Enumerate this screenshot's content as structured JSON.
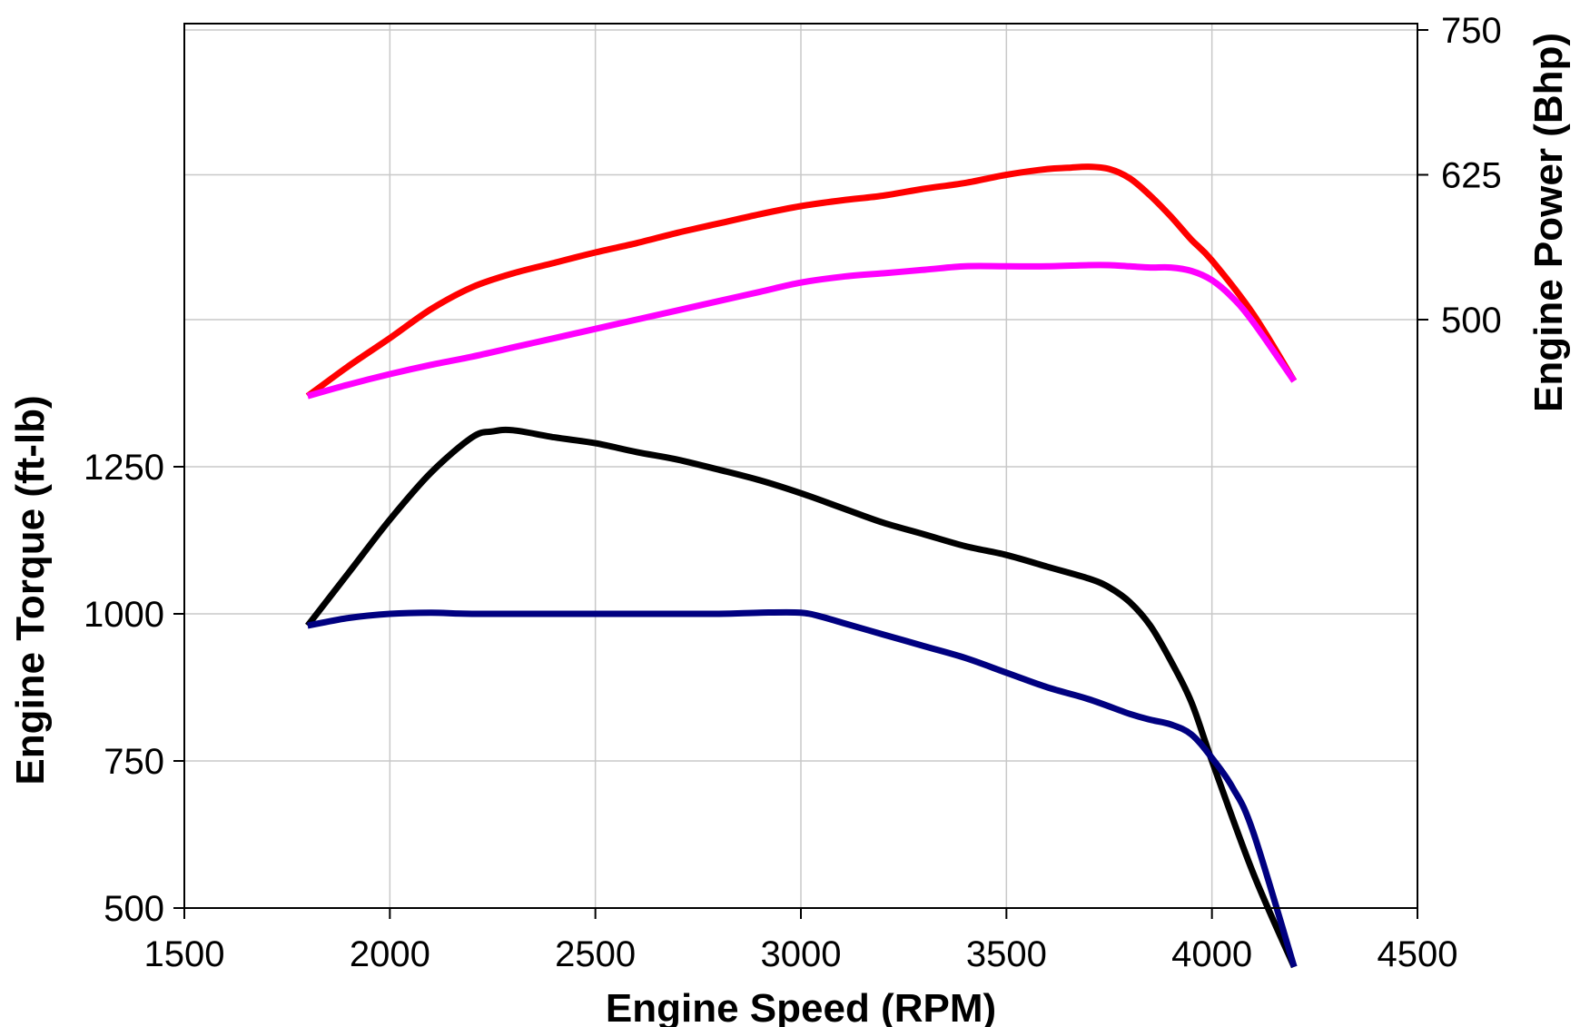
{
  "chart_data": {
    "type": "line",
    "xlabel": "Engine Speed (RPM)",
    "ylabel_left": "Engine Torque (ft-lb)",
    "ylabel_right": "Engine Power (Bhp)",
    "xlim": [
      1500,
      4500
    ],
    "x_ticks": [
      "1500",
      "2000",
      "2500",
      "3000",
      "3500",
      "4000",
      "4500"
    ],
    "y_left_ticks": [
      "500",
      "750",
      "1000",
      "1250"
    ],
    "y_right_ticks": [
      "500",
      "625",
      "750"
    ],
    "ylim_left": [
      500,
      1250
    ],
    "ylim_right": [
      500,
      750
    ],
    "grid": true,
    "series": [
      {
        "axis": "right",
        "color": "#ff0000",
        "x": [
          1800,
          1900,
          2000,
          2100,
          2200,
          2300,
          2400,
          2500,
          2600,
          2700,
          2800,
          2900,
          3000,
          3100,
          3200,
          3300,
          3400,
          3500,
          3600,
          3650,
          3700,
          3750,
          3800,
          3850,
          3900,
          3950,
          4000,
          4100,
          4200
        ],
        "values": [
          434,
          460,
          484,
          509,
          528,
          540,
          549,
          558,
          566,
          575,
          583,
          591,
          598,
          603,
          607,
          613,
          618,
          625,
          630,
          631,
          632,
          630,
          622,
          607,
          589,
          569,
          551,
          505,
          447
        ]
      },
      {
        "axis": "right",
        "color": "#ff00ff",
        "x": [
          1800,
          1900,
          2000,
          2100,
          2200,
          2300,
          2400,
          2500,
          2600,
          2700,
          2800,
          2900,
          3000,
          3100,
          3200,
          3300,
          3400,
          3500,
          3600,
          3700,
          3750,
          3800,
          3850,
          3900,
          3950,
          4000,
          4050,
          4100,
          4200
        ],
        "values": [
          434,
          444,
          453,
          461,
          468,
          476,
          484,
          492,
          500,
          508,
          516,
          524,
          532,
          537,
          540,
          543,
          546,
          546,
          546,
          547,
          547,
          546,
          545,
          545,
          542,
          534,
          519,
          498,
          447
        ]
      },
      {
        "axis": "left",
        "color": "#000000",
        "x": [
          1800,
          1900,
          2000,
          2100,
          2200,
          2250,
          2300,
          2400,
          2500,
          2600,
          2700,
          2800,
          2900,
          3000,
          3100,
          3200,
          3300,
          3400,
          3500,
          3600,
          3700,
          3750,
          3800,
          3850,
          3900,
          3950,
          4000,
          4100,
          4200
        ],
        "values": [
          980,
          1070,
          1160,
          1240,
          1300,
          1310,
          1312,
          1300,
          1290,
          1275,
          1262,
          1245,
          1227,
          1205,
          1180,
          1155,
          1135,
          1115,
          1100,
          1080,
          1060,
          1045,
          1020,
          980,
          920,
          850,
          750,
          560,
          400
        ]
      },
      {
        "axis": "left",
        "color": "#000080",
        "x": [
          1800,
          1900,
          2000,
          2100,
          2200,
          2400,
          2600,
          2800,
          2900,
          3000,
          3050,
          3100,
          3200,
          3300,
          3400,
          3500,
          3600,
          3700,
          3800,
          3850,
          3900,
          3950,
          4000,
          4050,
          4100,
          4200
        ],
        "values": [
          980,
          993,
          1000,
          1002,
          1000,
          1000,
          1000,
          1000,
          1002,
          1002,
          995,
          985,
          965,
          945,
          925,
          900,
          875,
          855,
          830,
          820,
          812,
          795,
          755,
          705,
          630,
          400
        ]
      }
    ]
  }
}
